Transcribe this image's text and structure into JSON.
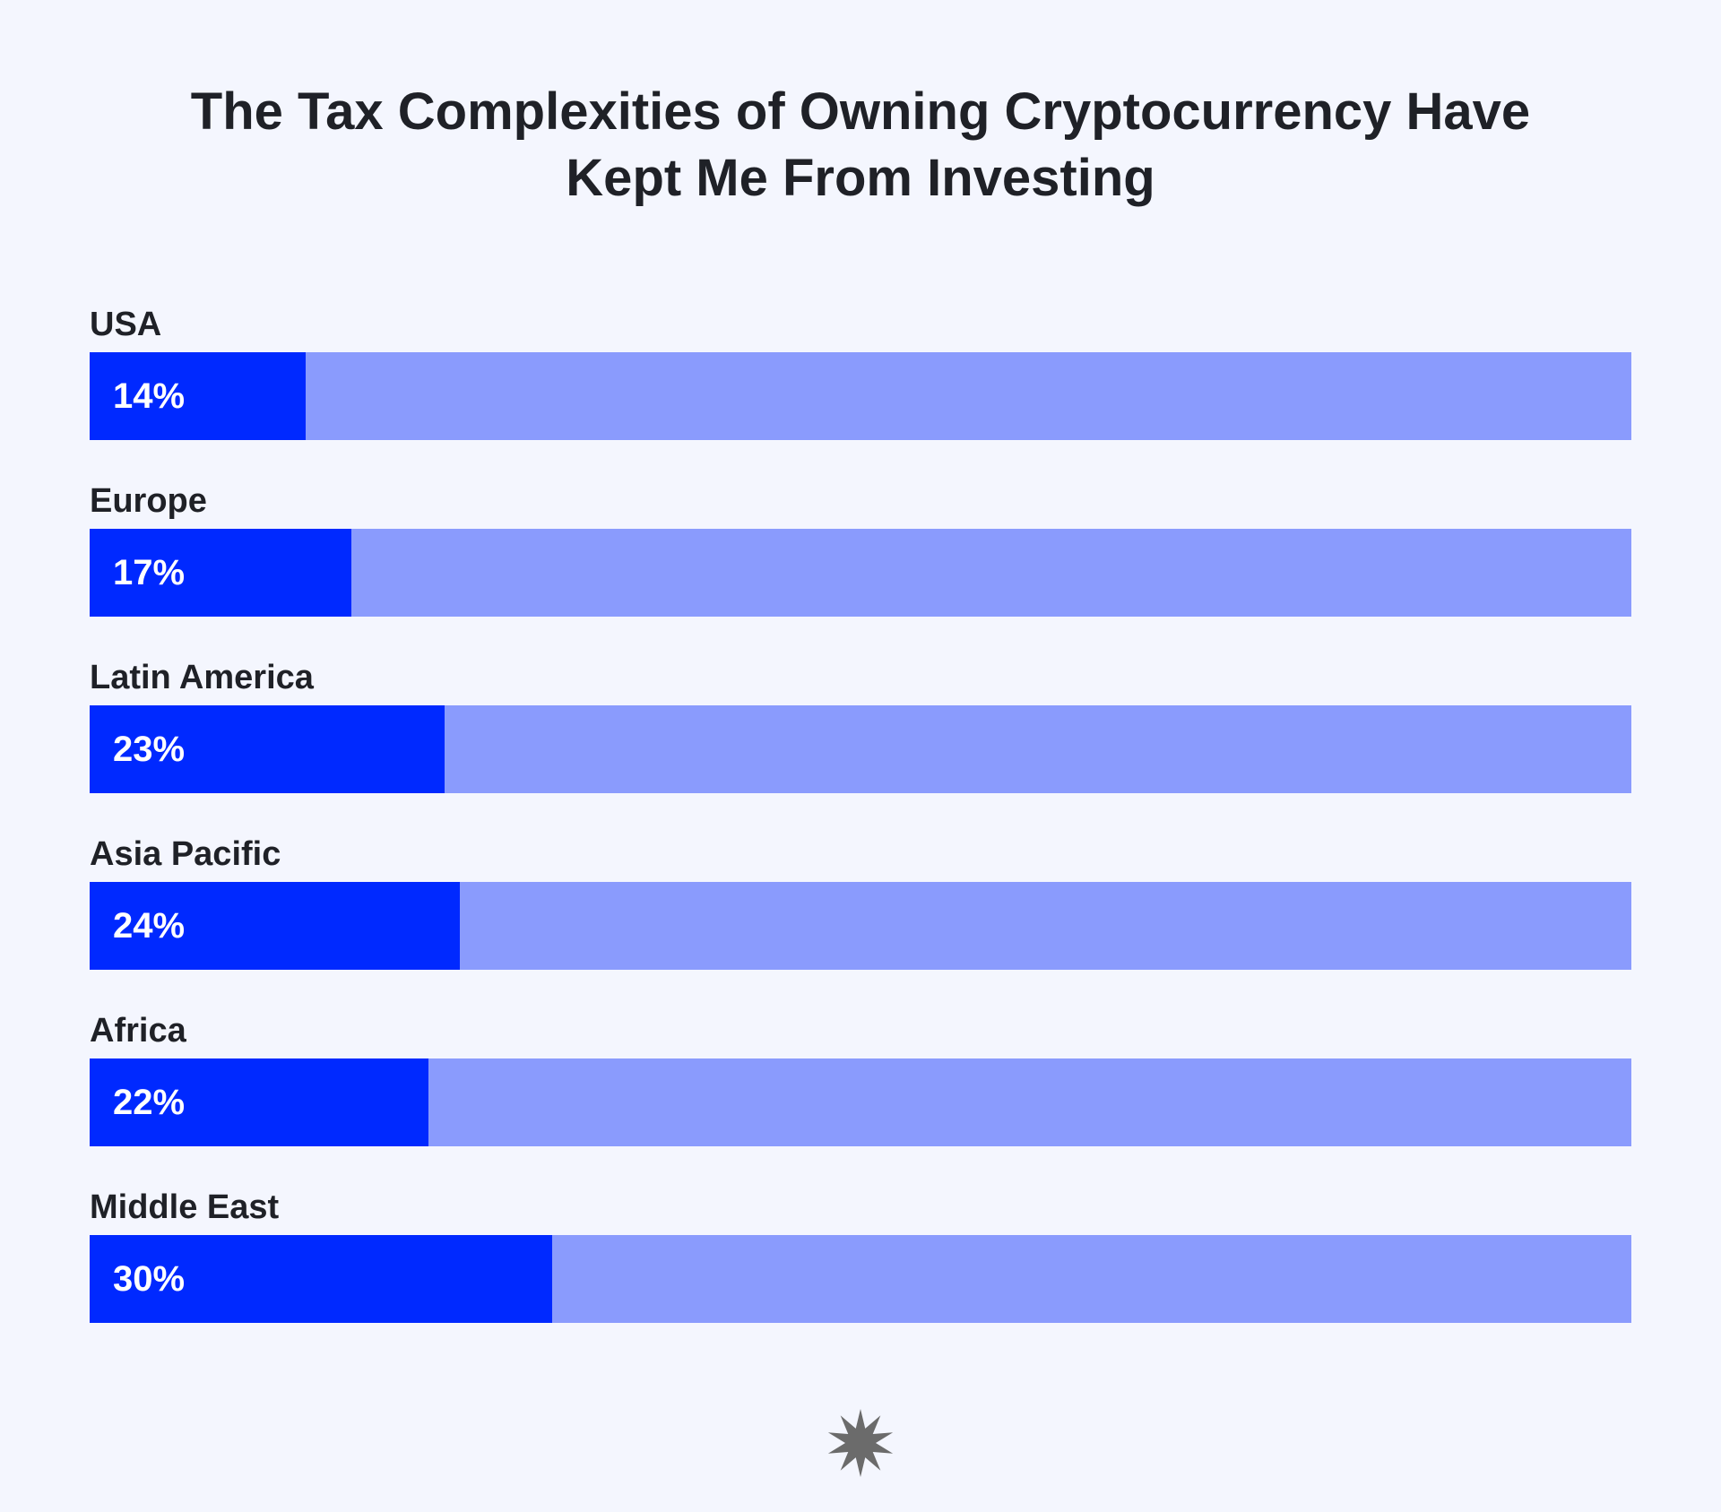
{
  "chart_data": {
    "type": "bar",
    "orientation": "horizontal",
    "title": "The Tax Complexities of Owning Cryptocurrency Have Kept Me From Investing",
    "title_lines": [
      "The Tax Complexities of Owning Cryptocurrency Have",
      "Kept Me From Investing"
    ],
    "categories": [
      "USA",
      "Europe",
      "Latin America",
      "Asia Pacific",
      "Africa",
      "Middle East"
    ],
    "values": [
      14,
      17,
      23,
      24,
      22,
      30
    ],
    "value_labels": [
      "14%",
      "17%",
      "23%",
      "24%",
      "22%",
      "30%"
    ],
    "xlim": [
      0,
      100
    ],
    "unit": "%",
    "xlabel": "",
    "ylabel": "",
    "grid": false,
    "legend": "none"
  },
  "colors": {
    "background": "#f4f6fe",
    "bar_fill": "#0029ff",
    "bar_track": "#8a9bfd",
    "text": "#1f2127",
    "value_text": "#ffffff",
    "logo": "#6b6b6b"
  },
  "footer": {
    "logo_icon": "starburst-logo-icon"
  }
}
